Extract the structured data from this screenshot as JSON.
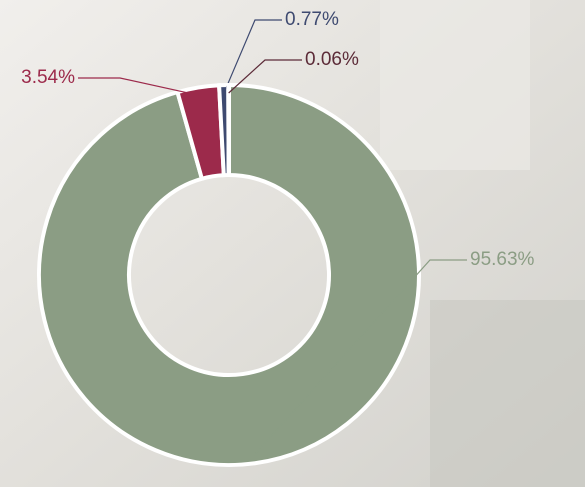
{
  "chart_data": {
    "type": "pie",
    "donut": true,
    "values": [
      95.63,
      3.54,
      0.77,
      0.06
    ],
    "value_labels": [
      "95.63%",
      "3.54%",
      "0.77%",
      "0.06%"
    ],
    "colors": [
      "#8b9d84",
      "#9c2a4b",
      "#3e4a70",
      "#5c2b38"
    ]
  }
}
